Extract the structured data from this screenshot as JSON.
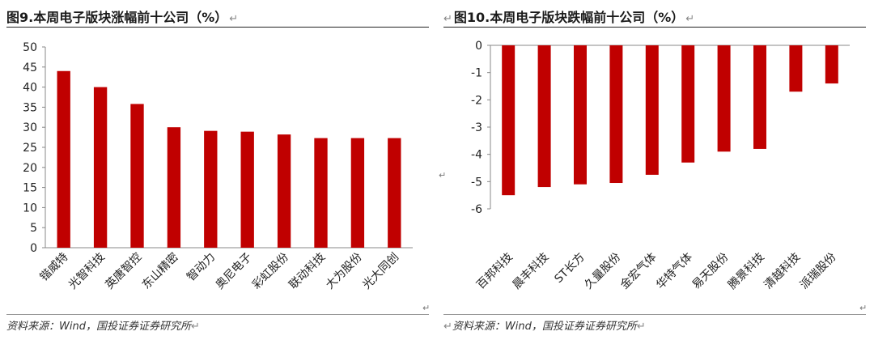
{
  "left": {
    "title": "图9.本周电子版块涨幅前十公司（%）",
    "source": "资料来源：Wind，国投证券证券研究所",
    "chart_data": {
      "type": "bar",
      "categories": [
        "锴威特",
        "光智科技",
        "英唐智控",
        "东山精密",
        "智动力",
        "奥尼电子",
        "彩虹股份",
        "联动科技",
        "大为股份",
        "光大同创"
      ],
      "values": [
        44,
        40,
        35.8,
        30,
        29.1,
        28.9,
        28.2,
        27.3,
        27.3,
        27.3
      ],
      "ylim": [
        0,
        50
      ],
      "yticks": [
        0,
        5,
        10,
        15,
        20,
        25,
        30,
        35,
        40,
        45,
        50
      ],
      "color": "#c00000",
      "grid": false,
      "title": "",
      "xlabel": "",
      "ylabel": ""
    }
  },
  "right": {
    "title": "图10.本周电子版块跌幅前十公司（%）",
    "source": "资料来源：Wind，国投证券证券研究所",
    "chart_data": {
      "type": "bar",
      "categories": [
        "百邦科技",
        "晨丰科技",
        "ST长方",
        "久量股份",
        "金宏气体",
        "华特气体",
        "易天股份",
        "腾景科技",
        "清越科技",
        "派瑞股份"
      ],
      "values": [
        -5.5,
        -5.2,
        -5.1,
        -5.05,
        -4.75,
        -4.3,
        -3.9,
        -3.8,
        -1.7,
        -1.4
      ],
      "ylim": [
        -6,
        0
      ],
      "yticks": [
        0,
        -1,
        -2,
        -3,
        -4,
        -5,
        -6
      ],
      "color": "#c00000",
      "grid": false,
      "title": "",
      "xlabel": "",
      "ylabel": ""
    }
  },
  "return_mark": "↵"
}
